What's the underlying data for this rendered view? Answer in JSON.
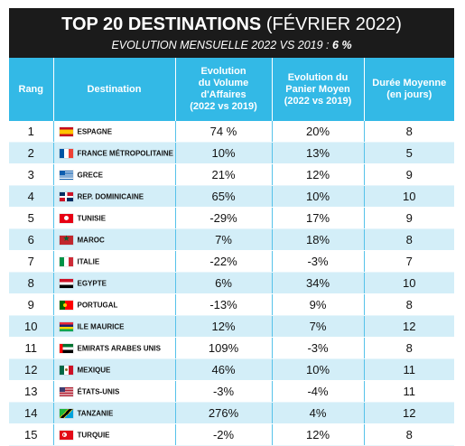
{
  "header": {
    "title_bold": "TOP 20 DESTINATIONS",
    "title_light": "(FÉVRIER 2022)",
    "subtitle_prefix": "EVOLUTION MENSUELLE 2022 VS 2019 :",
    "subtitle_value": "6 %"
  },
  "columns": {
    "rank": "Rang",
    "destination": "Destination",
    "volume": [
      "Evolution",
      "du Volume",
      "d'Affaires",
      "(2022 vs 2019)"
    ],
    "basket": [
      "Evolution du",
      "Panier Moyen",
      "(2022 vs 2019)"
    ],
    "duration": [
      "Durée Moyenne",
      "(en jours)"
    ]
  },
  "colors": {
    "header_bg": "#1b1b1b",
    "column_header_bg": "#33b9e6",
    "alt_row_bg": "#d3eef8"
  },
  "rows": [
    {
      "rank": "1",
      "destination": "ESPAGNE",
      "flag": "flag-spain-icon",
      "volume": "74 %",
      "basket": "20%",
      "duration": "8"
    },
    {
      "rank": "2",
      "destination": "FRANCE MÉTROPOLITAINE",
      "flag": "flag-france-icon",
      "volume": "10%",
      "basket": "13%",
      "duration": "5"
    },
    {
      "rank": "3",
      "destination": "GRECE",
      "flag": "flag-greece-icon",
      "volume": "21%",
      "basket": "12%",
      "duration": "9"
    },
    {
      "rank": "4",
      "destination": "REP. DOMINICAINE",
      "flag": "flag-dominican-republic-icon",
      "volume": "65%",
      "basket": "10%",
      "duration": "10"
    },
    {
      "rank": "5",
      "destination": "TUNISIE",
      "flag": "flag-tunisia-icon",
      "volume": "-29%",
      "basket": "17%",
      "duration": "9"
    },
    {
      "rank": "6",
      "destination": "MAROC",
      "flag": "flag-morocco-icon",
      "volume": "7%",
      "basket": "18%",
      "duration": "8"
    },
    {
      "rank": "7",
      "destination": "ITALIE",
      "flag": "flag-italy-icon",
      "volume": "-22%",
      "basket": "-3%",
      "duration": "7"
    },
    {
      "rank": "8",
      "destination": "EGYPTE",
      "flag": "flag-egypt-icon",
      "volume": "6%",
      "basket": "34%",
      "duration": "10"
    },
    {
      "rank": "9",
      "destination": "PORTUGAL",
      "flag": "flag-portugal-icon",
      "volume": "-13%",
      "basket": "9%",
      "duration": "8"
    },
    {
      "rank": "10",
      "destination": "ILE MAURICE",
      "flag": "flag-mauritius-icon",
      "volume": "12%",
      "basket": "7%",
      "duration": "12"
    },
    {
      "rank": "11",
      "destination": "EMIRATS ARABES UNIS",
      "flag": "flag-uae-icon",
      "volume": "109%",
      "basket": "-3%",
      "duration": "8"
    },
    {
      "rank": "12",
      "destination": "MEXIQUE",
      "flag": "flag-mexico-icon",
      "volume": "46%",
      "basket": "10%",
      "duration": "11"
    },
    {
      "rank": "13",
      "destination": "ÉTATS-UNIS",
      "flag": "flag-usa-icon",
      "volume": "-3%",
      "basket": "-4%",
      "duration": "11"
    },
    {
      "rank": "14",
      "destination": "TANZANIE",
      "flag": "flag-tanzania-icon",
      "volume": "276%",
      "basket": "4%",
      "duration": "12"
    },
    {
      "rank": "15",
      "destination": "TURQUIE",
      "flag": "flag-turkey-icon",
      "volume": "-2%",
      "basket": "12%",
      "duration": "8"
    }
  ]
}
